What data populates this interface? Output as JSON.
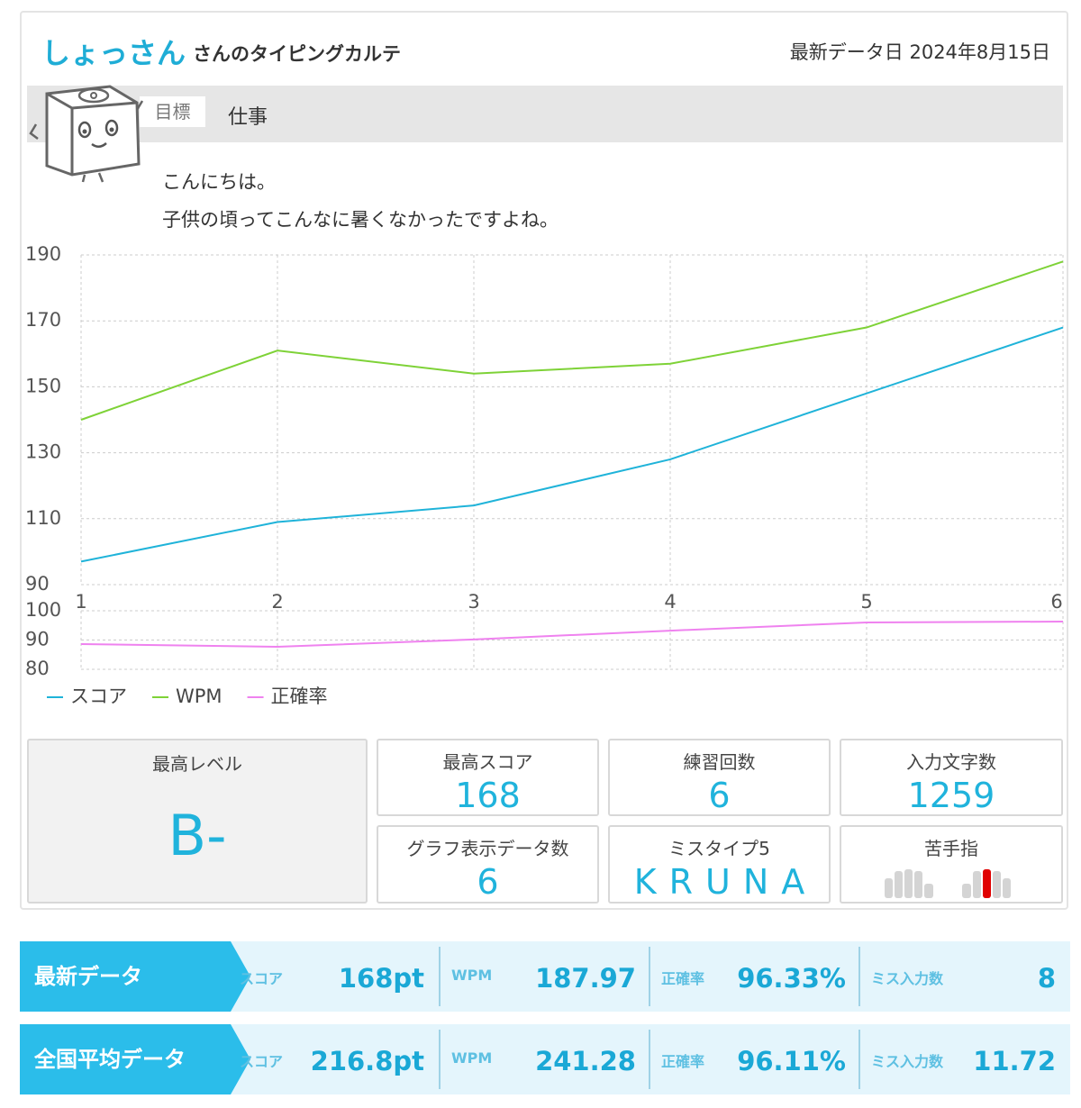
{
  "header": {
    "name": "しょっさん",
    "suffix": "さんのタイピングカルテ",
    "date": "最新データ日 2024年8月15日"
  },
  "goal": {
    "label": "目標",
    "value": "仕事"
  },
  "message": [
    "こんにちは。",
    "子供の頃ってこんなに暑くなかったですよね。"
  ],
  "chart_data": [
    {
      "type": "line",
      "x": [
        1,
        2,
        3,
        4,
        5,
        6
      ],
      "xlim": [
        1,
        6
      ],
      "xticks": [
        1,
        2,
        3,
        4,
        5,
        6
      ],
      "ylim": [
        90,
        190
      ],
      "yticks": [
        90,
        110,
        130,
        150,
        170,
        190
      ],
      "grid": true,
      "series": [
        {
          "name": "スコア",
          "color": "#1fb3d9",
          "values": [
            97,
            109,
            114,
            128,
            148,
            168
          ]
        },
        {
          "name": "WPM",
          "color": "#7ed237",
          "values": [
            140,
            161,
            154,
            157,
            168,
            188
          ]
        }
      ]
    },
    {
      "type": "line",
      "x": [
        1,
        2,
        3,
        4,
        5,
        6
      ],
      "xlim": [
        1,
        6
      ],
      "xticks": [
        1,
        2,
        3,
        4,
        5,
        6
      ],
      "ylim": [
        80,
        100
      ],
      "yticks": [
        80,
        90,
        100
      ],
      "grid": true,
      "series": [
        {
          "name": "正確率",
          "color": "#ef82ef",
          "values": [
            88.6,
            87.7,
            90.2,
            93.2,
            96.0,
            96.3
          ]
        }
      ]
    }
  ],
  "stats": {
    "max_level": {
      "label": "最高レベル",
      "value": "B-"
    },
    "max_score": {
      "label": "最高スコア",
      "value": "168"
    },
    "practice_count": {
      "label": "練習回数",
      "value": "6"
    },
    "input_chars": {
      "label": "入力文字数",
      "value": "1259"
    },
    "graph_data_count": {
      "label": "グラフ表示データ数",
      "value": "6"
    },
    "miss_types": {
      "label": "ミスタイプ5",
      "value": "KRUNA"
    },
    "weak_finger": {
      "label": "苦手指"
    }
  },
  "summary": [
    {
      "title": "最新データ",
      "cells": [
        {
          "label": "スコア",
          "value": "168pt"
        },
        {
          "label": "WPM",
          "value": "187.97"
        },
        {
          "label": "正確率",
          "value": "96.33%"
        },
        {
          "label": "ミス入力数",
          "value": "8"
        }
      ]
    },
    {
      "title": "全国平均データ",
      "cells": [
        {
          "label": "スコア",
          "value": "216.8pt"
        },
        {
          "label": "WPM",
          "value": "241.28"
        },
        {
          "label": "正確率",
          "value": "96.11%"
        },
        {
          "label": "ミス入力数",
          "value": "11.72"
        }
      ]
    }
  ]
}
